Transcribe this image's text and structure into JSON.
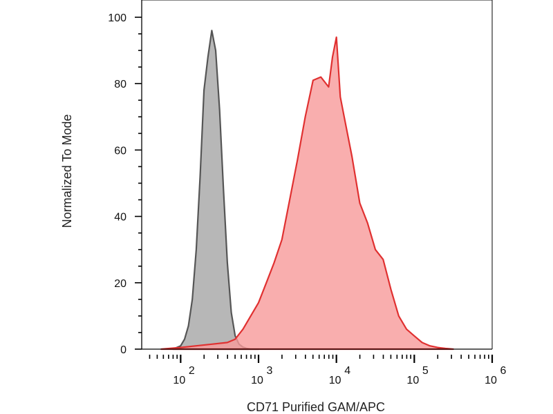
{
  "chart_data": {
    "type": "area",
    "xlabel": "CD71 Purified GAM/APC",
    "ylabel": "Normalized To Mode",
    "x_scale": "log",
    "xlim": [
      1.5,
      6
    ],
    "ylim": [
      0,
      100
    ],
    "y_ticks": [
      0,
      20,
      40,
      60,
      80,
      100
    ],
    "x_ticks": [
      {
        "base": "10",
        "exp": "2",
        "value": 2
      },
      {
        "base": "10",
        "exp": "3",
        "value": 3
      },
      {
        "base": "10",
        "exp": "4",
        "value": 4
      },
      {
        "base": "10",
        "exp": "5",
        "value": 5
      },
      {
        "base": "10",
        "exp": "6",
        "value": 6
      }
    ],
    "grid": false,
    "legend": "none",
    "series": [
      {
        "color": "#555555",
        "fill": "#aaaaaa",
        "x_log10": [
          1.9,
          1.95,
          2.0,
          2.05,
          2.1,
          2.15,
          2.2,
          2.25,
          2.3,
          2.35,
          2.4,
          2.45,
          2.5,
          2.55,
          2.6,
          2.65,
          2.7,
          2.75,
          2.8,
          2.85,
          2.9,
          3.0
        ],
        "y": [
          0,
          0.5,
          1,
          3,
          7,
          15,
          30,
          52,
          78,
          88,
          96,
          90,
          72,
          48,
          26,
          11,
          4,
          1.5,
          0.6,
          0.2,
          0,
          0
        ]
      },
      {
        "color": "#e03030",
        "fill": "#f79a9a",
        "x_log10": [
          1.75,
          2.0,
          2.2,
          2.4,
          2.6,
          2.7,
          2.8,
          2.9,
          3.0,
          3.1,
          3.2,
          3.3,
          3.4,
          3.5,
          3.6,
          3.7,
          3.8,
          3.9,
          3.95,
          4.0,
          4.05,
          4.1,
          4.2,
          4.3,
          4.4,
          4.5,
          4.6,
          4.7,
          4.8,
          4.9,
          5.0,
          5.1,
          5.2,
          5.3,
          5.4,
          5.5
        ],
        "y": [
          0,
          0.5,
          1,
          1.5,
          2,
          3,
          6,
          10,
          14,
          20,
          26,
          33,
          45,
          57,
          70,
          81,
          82,
          79,
          88,
          94,
          76,
          70,
          58,
          44,
          38,
          30,
          27,
          18,
          10,
          6,
          4,
          2,
          1,
          0.5,
          0.2,
          0
        ]
      }
    ]
  }
}
